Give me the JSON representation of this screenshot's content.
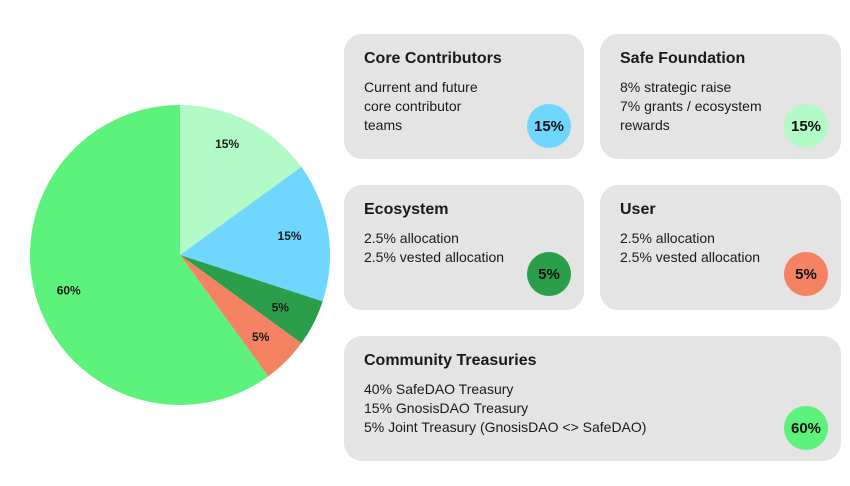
{
  "chart_data": {
    "type": "pie",
    "slices": [
      {
        "label": "15%",
        "value": 15,
        "color": "#b3fbc6"
      },
      {
        "label": "15%",
        "value": 15,
        "color": "#6fd6fd"
      },
      {
        "label": "5%",
        "value": 5,
        "color": "#2a9e4a"
      },
      {
        "label": "5%",
        "value": 5,
        "color": "#f58263"
      },
      {
        "label": "60%",
        "value": 60,
        "color": "#5df27b"
      }
    ]
  },
  "cards": {
    "core": {
      "title": "Core Contributors",
      "lines": [
        "Current and future",
        "core contributor",
        "teams"
      ],
      "badge": "15%",
      "color": "#6fd6fd"
    },
    "safe": {
      "title": "Safe Foundation",
      "lines": [
        "8% strategic raise",
        "7% grants / ecosystem",
        "rewards"
      ],
      "badge": "15%",
      "color": "#b3fbc6"
    },
    "eco": {
      "title": "Ecosystem",
      "lines": [
        "2.5% allocation",
        "2.5% vested allocation"
      ],
      "badge": "5%",
      "color": "#2a9e4a"
    },
    "user": {
      "title": "User",
      "lines": [
        "2.5% allocation",
        "2.5% vested allocation"
      ],
      "badge": "5%",
      "color": "#f58263"
    },
    "comm": {
      "title": "Community Treasuries",
      "lines": [
        "40% SafeDAO Treasury",
        "15% GnosisDAO Treasury",
        "5% Joint Treasury (GnosisDAO <> SafeDAO)"
      ],
      "badge": "60%",
      "color": "#5df27b"
    }
  }
}
